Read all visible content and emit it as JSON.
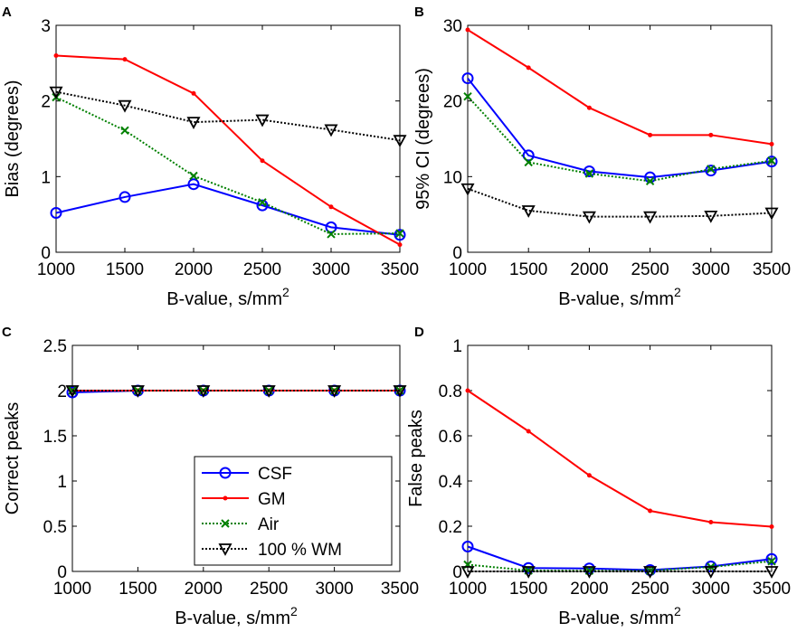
{
  "legend": {
    "entries": [
      "CSF",
      "GM",
      "Air",
      "100 % WM"
    ]
  },
  "series_style": [
    {
      "color": "#0000ff",
      "marker": "circle",
      "line": "solid"
    },
    {
      "color": "#ff0000",
      "marker": "dot",
      "line": "solid"
    },
    {
      "color": "#008000",
      "marker": "x",
      "line": "dotted"
    },
    {
      "color": "#000000",
      "marker": "triangle-down",
      "line": "dotted"
    }
  ],
  "chart_data": [
    {
      "panel": "A",
      "type": "line",
      "x": [
        1000,
        1500,
        2000,
        2500,
        3000,
        3500
      ],
      "xticks": [
        "1000",
        "1500",
        "2000",
        "2500",
        "3000",
        "3500"
      ],
      "xlabel": "B-value, s/mm",
      "xlabel_sup": "2",
      "ylabel": "Bias (degrees)",
      "ylim": [
        0,
        3
      ],
      "yticks": [
        0,
        1,
        2,
        3
      ],
      "ytick_labels": [
        "0",
        "1",
        "2",
        "3"
      ],
      "series": [
        {
          "name": "CSF",
          "values": [
            0.52,
            0.73,
            0.9,
            0.62,
            0.33,
            0.23
          ]
        },
        {
          "name": "GM",
          "values": [
            2.6,
            2.55,
            2.1,
            1.21,
            0.6,
            0.1
          ]
        },
        {
          "name": "Air",
          "values": [
            2.05,
            1.61,
            1.01,
            0.66,
            0.24,
            0.25
          ]
        },
        {
          "name": "100 % WM",
          "values": [
            2.12,
            1.94,
            1.72,
            1.75,
            1.62,
            1.48
          ]
        }
      ]
    },
    {
      "panel": "B",
      "type": "line",
      "x": [
        1000,
        1500,
        2000,
        2500,
        3000,
        3500
      ],
      "xticks": [
        "1000",
        "1500",
        "2000",
        "2500",
        "3000",
        "3500"
      ],
      "xlabel": "B-value, s/mm",
      "xlabel_sup": "2",
      "ylabel": "95% CI (degrees)",
      "ylim": [
        0,
        30
      ],
      "yticks": [
        0,
        10,
        20,
        30
      ],
      "ytick_labels": [
        "0",
        "10",
        "20",
        "30"
      ],
      "series": [
        {
          "name": "CSF",
          "values": [
            23.0,
            12.8,
            10.7,
            9.9,
            10.8,
            12.0
          ]
        },
        {
          "name": "GM",
          "values": [
            29.4,
            24.4,
            19.1,
            15.5,
            15.5,
            14.3
          ]
        },
        {
          "name": "Air",
          "values": [
            20.6,
            11.9,
            10.4,
            9.4,
            11.0,
            12.1
          ]
        },
        {
          "name": "100 % WM",
          "values": [
            8.4,
            5.5,
            4.7,
            4.7,
            4.8,
            5.2
          ]
        }
      ]
    },
    {
      "panel": "C",
      "type": "line",
      "x": [
        1000,
        1500,
        2000,
        2500,
        3000,
        3500
      ],
      "xticks": [
        "1000",
        "1500",
        "2000",
        "2500",
        "3000",
        "3500"
      ],
      "xlabel": "B-value, s/mm",
      "xlabel_sup": "2",
      "ylabel": "Correct peaks",
      "ylim": [
        0,
        2.5
      ],
      "yticks": [
        0,
        0.5,
        1,
        1.5,
        2,
        2.5
      ],
      "ytick_labels": [
        "0",
        "0.5",
        "1",
        "1.5",
        "2",
        "2.5"
      ],
      "series": [
        {
          "name": "CSF",
          "values": [
            1.98,
            2.0,
            2.0,
            2.0,
            2.0,
            2.0
          ]
        },
        {
          "name": "GM",
          "values": [
            2.0,
            2.0,
            2.0,
            2.0,
            2.0,
            2.0
          ]
        },
        {
          "name": "Air",
          "values": [
            2.0,
            2.0,
            2.0,
            2.0,
            2.0,
            2.0
          ]
        },
        {
          "name": "100 % WM",
          "values": [
            2.0,
            2.0,
            2.0,
            2.0,
            2.0,
            2.0
          ]
        }
      ]
    },
    {
      "panel": "D",
      "type": "line",
      "x": [
        1000,
        1500,
        2000,
        2500,
        3000,
        3500
      ],
      "xticks": [
        "1000",
        "1500",
        "2000",
        "2500",
        "3000",
        "3500"
      ],
      "xlabel": "B-value, s/mm",
      "xlabel_sup": "2",
      "ylabel": "False peaks",
      "ylim": [
        0,
        1
      ],
      "yticks": [
        0,
        0.2,
        0.4,
        0.6,
        0.8,
        1
      ],
      "ytick_labels": [
        "0",
        "0.2",
        "0.4",
        "0.6",
        "0.8",
        "1"
      ],
      "series": [
        {
          "name": "CSF",
          "values": [
            0.11,
            0.015,
            0.013,
            0.006,
            0.022,
            0.055
          ]
        },
        {
          "name": "GM",
          "values": [
            0.8,
            0.62,
            0.425,
            0.268,
            0.218,
            0.198
          ]
        },
        {
          "name": "Air",
          "values": [
            0.03,
            0.004,
            0.003,
            0.003,
            0.02,
            0.045
          ]
        },
        {
          "name": "100 % WM",
          "values": [
            0.0,
            0.0,
            0.0,
            0.0,
            0.0,
            0.0
          ]
        }
      ]
    }
  ]
}
